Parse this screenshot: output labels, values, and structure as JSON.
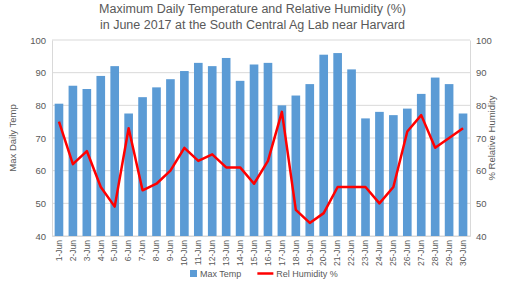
{
  "chart_data": {
    "type": "bar",
    "title": "Maximum Daily Temperature and Relative Humidity (%)\nin June 2017 at the South Central Ag Lab near Harvard",
    "y_label": "Max Daily Temp",
    "y2_label": "% Relative Humidity",
    "categories": [
      "1-Jun",
      "2-Jun",
      "3-Jun",
      "4-Jun",
      "5-Jun",
      "6-Jun",
      "7-Jun",
      "8-Jun",
      "9-Jun",
      "10-Jun",
      "11-Jun",
      "12-Jun",
      "13-Jun",
      "14-Jun",
      "15-Jun",
      "16-Jun",
      "17-Jun",
      "18-Jun",
      "19-Jun",
      "20-Jun",
      "21-Jun",
      "22-Jun",
      "23-Jun",
      "24-Jun",
      "25-Jun",
      "26-Jun",
      "27-Jun",
      "28-Jun",
      "29-Jun",
      "30-Jun"
    ],
    "series": [
      {
        "name": "Max Temp",
        "type": "bar",
        "color": "#5b9bd5",
        "values": [
          80.5,
          86,
          85,
          89,
          92,
          77.5,
          82.5,
          85.5,
          88,
          90.5,
          93,
          92,
          94.5,
          87.5,
          92.5,
          93,
          80,
          83,
          86.5,
          95.5,
          96,
          91,
          76,
          78,
          77,
          79,
          83.5,
          88.5,
          86.5,
          77.5
        ]
      },
      {
        "name": "Rel Humidity %",
        "type": "line",
        "color": "#ff0000",
        "axis": "y2",
        "values": [
          75,
          62,
          66,
          55,
          49,
          73,
          54,
          56,
          60,
          67,
          63,
          65,
          61,
          61,
          56,
          63,
          78,
          48,
          44,
          47,
          55,
          55,
          55,
          50,
          55,
          72,
          77,
          67,
          70,
          73
        ]
      }
    ],
    "ylim": [
      40,
      100
    ],
    "yticks": [
      40,
      50,
      60,
      70,
      80,
      90,
      100
    ],
    "y2lim": [
      40,
      100
    ],
    "y2ticks": [
      40,
      50,
      60,
      70,
      80,
      90,
      100
    ],
    "grid": true,
    "legend": "bottom"
  }
}
